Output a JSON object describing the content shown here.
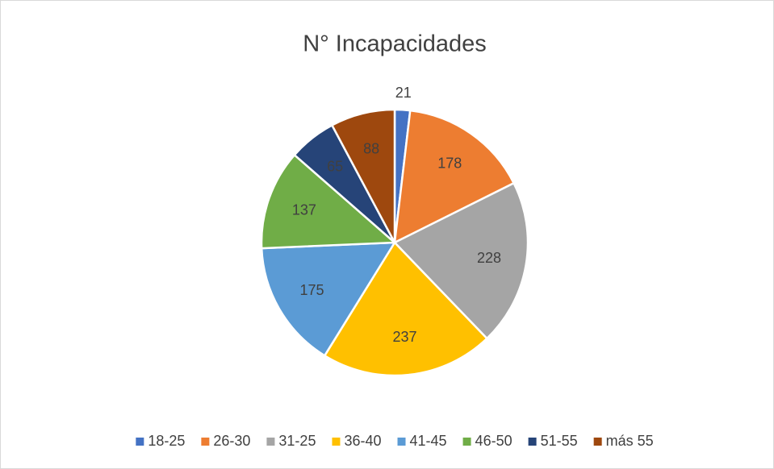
{
  "chart_data": {
    "type": "pie",
    "title": "N° Incapacidades",
    "categories": [
      "18-25",
      "26-30",
      "31-25",
      "36-40",
      "41-45",
      "46-50",
      "51-55",
      "más 55"
    ],
    "values": [
      21,
      178,
      228,
      237,
      175,
      137,
      65,
      88
    ],
    "colors": [
      "#4472c4",
      "#ed7d31",
      "#a5a5a5",
      "#ffc000",
      "#5b9bd5",
      "#70ad47",
      "#264478",
      "#9e480e"
    ],
    "legend": "bottom"
  }
}
